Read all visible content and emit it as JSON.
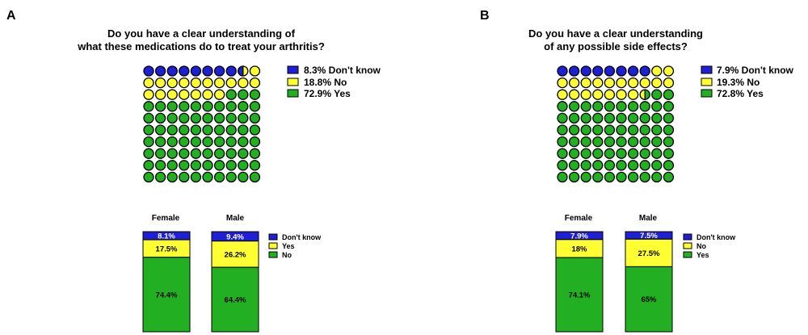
{
  "colors": {
    "dont_know": "#1f1fd6",
    "no_yellow": "#ffff33",
    "yes_green": "#22b022",
    "outline": "#000000"
  },
  "chart_data": [
    {
      "panel_label": "A",
      "type": "waffle",
      "title_lines": [
        "Do you have a clear understanding of",
        "what these medications do to treat your arthritis?"
      ],
      "grid_rows": 10,
      "grid_cols": 10,
      "legend_position": "right",
      "series": [
        {
          "name": "Don't know",
          "value": 8.3,
          "label": "8.3%  Don't know",
          "color": "#1f1fd6"
        },
        {
          "name": "No",
          "value": 18.8,
          "label": "18.8%  No",
          "color": "#ffff33"
        },
        {
          "name": "Yes",
          "value": 72.9,
          "label": "72.9%  Yes",
          "color": "#22b022"
        }
      ]
    },
    {
      "panel_label": "B",
      "type": "waffle",
      "title_lines": [
        "Do you have a clear understanding",
        "of any possible side effects?"
      ],
      "grid_rows": 10,
      "grid_cols": 10,
      "legend_position": "right",
      "series": [
        {
          "name": "Don't know",
          "value": 7.9,
          "label": "7.9% Don't know",
          "color": "#1f1fd6"
        },
        {
          "name": "No",
          "value": 19.3,
          "label": "19.3%  No",
          "color": "#ffff33"
        },
        {
          "name": "Yes",
          "value": 72.8,
          "label": "72.8% Yes",
          "color": "#22b022"
        }
      ]
    },
    {
      "type": "bar",
      "stacked": true,
      "panel": "A",
      "categories": [
        "Female",
        "Male"
      ],
      "ylim": [
        0,
        100
      ],
      "legend_position": "right",
      "series": [
        {
          "name": "Don't know",
          "values": [
            8.1,
            9.4
          ],
          "labels": [
            "8.1%",
            "9.4%"
          ],
          "color": "#1f1fd6"
        },
        {
          "name": "Yes",
          "values": [
            17.5,
            26.2
          ],
          "labels": [
            "17.5%",
            "26.2%"
          ],
          "color": "#ffff33"
        },
        {
          "name": "No",
          "values": [
            74.4,
            64.4
          ],
          "labels": [
            "74.4%",
            "64.4%"
          ],
          "color": "#22b022"
        }
      ]
    },
    {
      "type": "bar",
      "stacked": true,
      "panel": "B",
      "categories": [
        "Female",
        "Male"
      ],
      "ylim": [
        0,
        100
      ],
      "legend_position": "right",
      "series": [
        {
          "name": "Don't know",
          "values": [
            7.9,
            7.5
          ],
          "labels": [
            "7.9%",
            "7.5%"
          ],
          "color": "#1f1fd6"
        },
        {
          "name": "No",
          "values": [
            18,
            27.5
          ],
          "labels": [
            "18%",
            "27.5%"
          ],
          "color": "#ffff33"
        },
        {
          "name": "Yes",
          "values": [
            74.1,
            65
          ],
          "labels": [
            "74.1%",
            "65%"
          ],
          "color": "#22b022"
        }
      ]
    }
  ]
}
